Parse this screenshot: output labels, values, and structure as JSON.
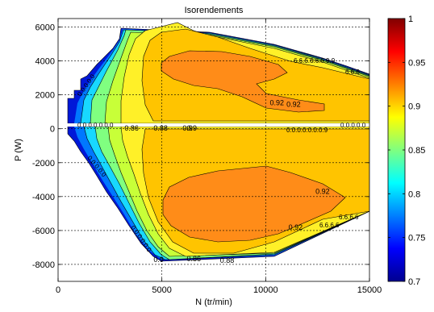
{
  "chart_data": {
    "type": "contour",
    "title": "Isorendements",
    "xlabel": "N (tr/min)",
    "ylabel": "P (W)",
    "xlim": [
      0,
      15000
    ],
    "ylim": [
      -9000,
      6500
    ],
    "x_ticks": [
      0,
      5000,
      10000,
      15000
    ],
    "y_ticks": [
      -8000,
      -6000,
      -4000,
      -2000,
      0,
      2000,
      4000,
      6000
    ],
    "grid": true,
    "colorbar": {
      "range": [
        0.7,
        1
      ],
      "ticks": [
        "0.7",
        "0.75",
        "0.8",
        "0.85",
        "0.9",
        "0.95",
        "1"
      ],
      "colormap": "jet"
    },
    "contour_labels": [
      "0.86",
      "0.88",
      "0.9",
      "0.92",
      "0.9",
      "0.92",
      "0.92",
      "0.92",
      "0.86",
      "0.88",
      "0.9"
    ],
    "contour_levels": [
      {
        "level": 0.72,
        "color": "#0010c0"
      },
      {
        "level": 0.76,
        "color": "#0060ff"
      },
      {
        "level": 0.8,
        "color": "#00c8ff"
      },
      {
        "level": 0.82,
        "color": "#30ffd0"
      },
      {
        "level": 0.84,
        "color": "#80ff80"
      },
      {
        "level": 0.86,
        "color": "#c8ff38"
      },
      {
        "level": 0.88,
        "color": "#fff028"
      },
      {
        "level": 0.9,
        "color": "#ffc400"
      },
      {
        "level": 0.92,
        "color": "#ff8c18"
      }
    ]
  }
}
